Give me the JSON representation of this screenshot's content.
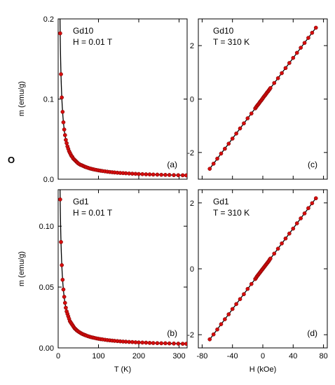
{
  "figure": {
    "stray_label": "O"
  },
  "chart_data": [
    {
      "panel": "a",
      "type": "scatter",
      "panel_label": "(a)",
      "sample": "Gd10",
      "condition": "H =  0.01 T",
      "ylabel": "m (emu/g)",
      "xlabel": "",
      "xlim": [
        0,
        320
      ],
      "ylim": [
        0,
        0.2
      ],
      "xticks": [
        0,
        100,
        200,
        300
      ],
      "yticks": [
        {
          "v": 0.0,
          "label": "0.0"
        },
        {
          "v": 0.1,
          "label": "0.1"
        },
        {
          "v": 0.2,
          "label": "0.2"
        }
      ],
      "show_xtick_labels": false,
      "model": {
        "kind": "curie",
        "C": 0.9,
        "T0": 0,
        "m0": 0.002
      },
      "points_x": [
        5,
        7,
        9,
        11,
        13,
        15,
        17,
        19,
        21,
        23,
        25,
        27,
        29,
        31,
        33,
        35,
        37,
        39,
        41,
        43,
        45,
        47,
        49,
        52,
        55,
        58,
        61,
        64,
        67,
        70,
        74,
        78,
        82,
        86,
        90,
        95,
        100,
        105,
        110,
        116,
        122,
        128,
        134,
        140,
        147,
        154,
        161,
        168,
        176,
        184,
        192,
        200,
        209,
        218,
        227,
        236,
        246,
        256,
        266,
        276,
        287,
        298,
        309,
        318
      ],
      "points_y": [
        0.182,
        0.131,
        0.102,
        0.084,
        0.071,
        0.062,
        0.055,
        0.049,
        0.045,
        0.041,
        0.038,
        0.035,
        0.033,
        0.031,
        0.029,
        0.028,
        0.026,
        0.025,
        0.024,
        0.023,
        0.022,
        0.021,
        0.02,
        0.019,
        0.018,
        0.0175,
        0.0168,
        0.0161,
        0.0154,
        0.0149,
        0.0142,
        0.0135,
        0.013,
        0.0125,
        0.012,
        0.0115,
        0.011,
        0.0106,
        0.0102,
        0.0098,
        0.0094,
        0.009,
        0.0087,
        0.0084,
        0.0081,
        0.0078,
        0.0076,
        0.0074,
        0.0071,
        0.0069,
        0.0067,
        0.0065,
        0.0063,
        0.0061,
        0.006,
        0.0058,
        0.0057,
        0.0055,
        0.0054,
        0.0053,
        0.0051,
        0.005,
        0.0049,
        0.0048
      ]
    },
    {
      "panel": "b",
      "type": "scatter",
      "panel_label": "(b)",
      "sample": "Gd1",
      "condition": "H = 0.01 T",
      "ylabel": "m (emu/g)",
      "xlabel": "T (K)",
      "xlim": [
        0,
        320
      ],
      "ylim": [
        0,
        0.13
      ],
      "xticks": [
        0,
        100,
        200,
        300
      ],
      "yticks": [
        {
          "v": 0.0,
          "label": "0.00"
        },
        {
          "v": 0.05,
          "label": "0.05"
        },
        {
          "v": 0.1,
          "label": "0.10"
        }
      ],
      "show_xtick_labels": true,
      "model": {
        "kind": "curie",
        "C": 0.6,
        "T0": 0,
        "m0": 0.0015
      },
      "points_x": [
        5,
        7,
        9,
        11,
        13,
        15,
        17,
        19,
        21,
        23,
        25,
        27,
        29,
        31,
        33,
        35,
        37,
        39,
        41,
        43,
        45,
        47,
        49,
        52,
        55,
        58,
        61,
        64,
        67,
        70,
        74,
        78,
        82,
        86,
        90,
        95,
        100,
        105,
        110,
        116,
        122,
        128,
        134,
        140,
        147,
        154,
        161,
        168,
        176,
        184,
        192,
        200,
        209,
        218,
        227,
        236,
        246,
        256,
        266,
        276,
        287,
        298,
        309,
        318
      ],
      "points_y": [
        0.122,
        0.087,
        0.068,
        0.056,
        0.048,
        0.042,
        0.037,
        0.033,
        0.03,
        0.028,
        0.026,
        0.024,
        0.022,
        0.021,
        0.02,
        0.019,
        0.018,
        0.017,
        0.016,
        0.0155,
        0.0148,
        0.0142,
        0.0137,
        0.013,
        0.0124,
        0.0118,
        0.0113,
        0.0109,
        0.0105,
        0.0101,
        0.0096,
        0.0092,
        0.0088,
        0.0085,
        0.0082,
        0.0078,
        0.0075,
        0.0072,
        0.007,
        0.0067,
        0.0064,
        0.0062,
        0.006,
        0.0058,
        0.0056,
        0.0054,
        0.0052,
        0.0051,
        0.0049,
        0.0048,
        0.0046,
        0.0045,
        0.0044,
        0.0043,
        0.0041,
        0.004,
        0.0039,
        0.0038,
        0.0038,
        0.0037,
        0.0036,
        0.0035,
        0.0034,
        0.0034
      ]
    },
    {
      "panel": "c",
      "type": "scatter",
      "panel_label": "(c)",
      "sample": "Gd10",
      "condition": "T = 310 K",
      "ylabel": "",
      "xlabel": "",
      "xlim": [
        -85,
        85
      ],
      "ylim": [
        -3,
        3
      ],
      "xticks": [
        -80,
        -40,
        0,
        40,
        80
      ],
      "yticks": [
        {
          "v": -2,
          "label": "-2"
        },
        {
          "v": 0,
          "label": "0"
        },
        {
          "v": 2,
          "label": "2"
        }
      ],
      "show_xtick_labels": false,
      "model": {
        "kind": "linear",
        "slope": 0.0377,
        "intercept": 0.03
      },
      "points_x": [
        -70,
        -65,
        -60,
        -55,
        -50,
        -45,
        -40,
        -35,
        -30,
        -25,
        -20,
        -15,
        -10,
        -9,
        -8,
        -7,
        -6,
        -5,
        -4,
        -3,
        -2,
        -1,
        0,
        1,
        2,
        3,
        4,
        5,
        6,
        7,
        8,
        9,
        10,
        15,
        20,
        25,
        30,
        35,
        40,
        45,
        50,
        55,
        60,
        65,
        70
      ],
      "points_y": [
        -2.61,
        -2.42,
        -2.23,
        -2.04,
        -1.86,
        -1.67,
        -1.48,
        -1.29,
        -1.1,
        -0.91,
        -0.72,
        -0.54,
        -0.35,
        -0.31,
        -0.27,
        -0.23,
        -0.2,
        -0.16,
        -0.12,
        -0.08,
        -0.05,
        -0.01,
        0.03,
        0.07,
        0.11,
        0.14,
        0.18,
        0.22,
        0.26,
        0.29,
        0.33,
        0.37,
        0.41,
        0.6,
        0.78,
        0.97,
        1.16,
        1.35,
        1.54,
        1.73,
        1.92,
        2.1,
        2.29,
        2.48,
        2.67
      ]
    },
    {
      "panel": "d",
      "type": "scatter",
      "panel_label": "(d)",
      "sample": "Gd1",
      "condition": "T = 310 K",
      "ylabel": "",
      "xlabel": "H (kOe)",
      "xlim": [
        -85,
        85
      ],
      "ylim": [
        -2.4,
        2.4
      ],
      "xticks": [
        -80,
        -40,
        0,
        40,
        80
      ],
      "yticks": [
        {
          "v": -2,
          "label": "-2"
        },
        {
          "v": 0,
          "label": "0"
        },
        {
          "v": 2,
          "label": "2"
        }
      ],
      "show_xtick_labels": true,
      "model": {
        "kind": "linear",
        "slope": 0.0306,
        "intercept": 0.0
      },
      "points_x": [
        -70,
        -65,
        -60,
        -55,
        -50,
        -45,
        -40,
        -35,
        -30,
        -25,
        -20,
        -15,
        -10,
        -9,
        -8,
        -7,
        -6,
        -5,
        -4,
        -3,
        -2,
        -1,
        0,
        1,
        2,
        3,
        4,
        5,
        6,
        7,
        8,
        9,
        10,
        15,
        20,
        25,
        30,
        35,
        40,
        45,
        50,
        55,
        60,
        65,
        70
      ],
      "points_y": [
        -2.14,
        -1.99,
        -1.84,
        -1.68,
        -1.53,
        -1.38,
        -1.22,
        -1.07,
        -0.92,
        -0.77,
        -0.61,
        -0.46,
        -0.31,
        -0.28,
        -0.24,
        -0.21,
        -0.18,
        -0.15,
        -0.12,
        -0.09,
        -0.06,
        -0.03,
        0.0,
        0.03,
        0.06,
        0.09,
        0.12,
        0.15,
        0.18,
        0.21,
        0.24,
        0.28,
        0.31,
        0.46,
        0.61,
        0.77,
        0.92,
        1.07,
        1.22,
        1.38,
        1.53,
        1.68,
        1.84,
        1.99,
        2.14
      ]
    }
  ]
}
